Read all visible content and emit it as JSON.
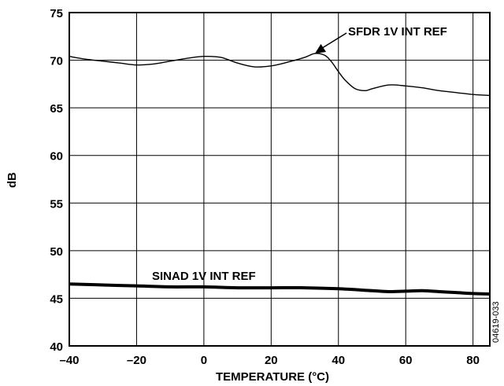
{
  "chart_data": {
    "type": "line",
    "title": "",
    "xlabel": "TEMPERATURE (°C)",
    "ylabel": "dB",
    "xlim": [
      -40,
      85
    ],
    "ylim": [
      40,
      75
    ],
    "x_ticks": [
      -40,
      -20,
      0,
      20,
      40,
      60,
      80
    ],
    "x_tick_labels": [
      "–40",
      "–20",
      "0",
      "20",
      "40",
      "60",
      "80"
    ],
    "y_ticks": [
      40,
      45,
      50,
      55,
      60,
      65,
      70,
      75
    ],
    "y_tick_labels": [
      "40",
      "45",
      "50",
      "55",
      "60",
      "65",
      "70",
      "75"
    ],
    "grid": true,
    "series": [
      {
        "name": "SFDR 1V INT REF",
        "x": [
          -40,
          -35,
          -30,
          -25,
          -20,
          -15,
          -10,
          -5,
          0,
          5,
          10,
          15,
          20,
          25,
          30,
          33,
          36,
          38,
          40,
          42,
          45,
          48,
          50,
          55,
          60,
          65,
          70,
          75,
          80,
          85
        ],
        "y": [
          70.4,
          70.1,
          69.9,
          69.7,
          69.5,
          69.6,
          69.9,
          70.2,
          70.4,
          70.3,
          69.7,
          69.3,
          69.4,
          69.8,
          70.3,
          70.7,
          70.5,
          69.8,
          68.8,
          67.9,
          67.0,
          66.8,
          67.0,
          67.4,
          67.3,
          67.1,
          66.8,
          66.6,
          66.4,
          66.3
        ]
      },
      {
        "name": "SINAD 1V INT REF",
        "x": [
          -40,
          -30,
          -20,
          -10,
          0,
          10,
          20,
          30,
          40,
          50,
          55,
          60,
          65,
          70,
          75,
          80,
          85
        ],
        "y": [
          46.5,
          46.4,
          46.3,
          46.2,
          46.2,
          46.1,
          46.1,
          46.1,
          46.0,
          45.8,
          45.7,
          45.75,
          45.8,
          45.7,
          45.6,
          45.5,
          45.45
        ]
      }
    ],
    "annotations": [
      "SFDR 1V INT REF",
      "SINAD 1V INT REF"
    ]
  },
  "figure_id": "04619-033"
}
